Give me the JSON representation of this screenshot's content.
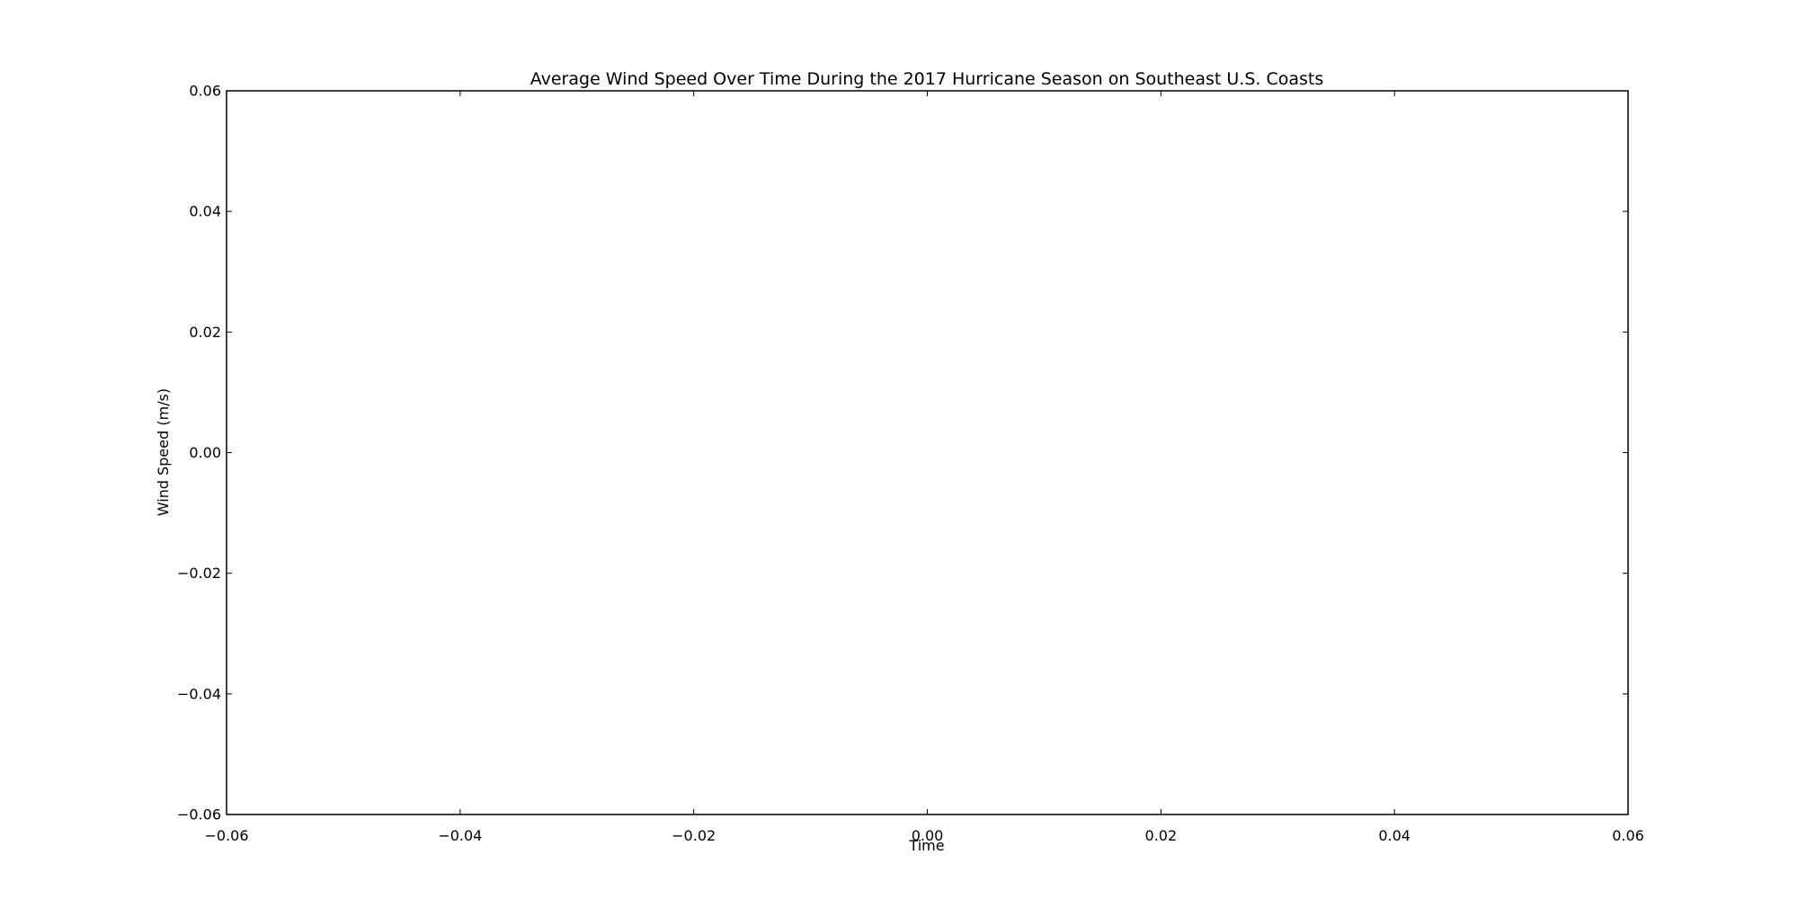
{
  "chart_data": {
    "type": "line",
    "title": "Average Wind Speed Over Time During the 2017 Hurricane Season on Southeast U.S. Coasts",
    "xlabel": "Time",
    "ylabel": "Wind Speed (m/s)",
    "xlim": [
      -0.06,
      0.06
    ],
    "ylim": [
      -0.06,
      0.06
    ],
    "x_ticks": [
      -0.06,
      -0.04,
      -0.02,
      0.0,
      0.02,
      0.04,
      0.06
    ],
    "y_ticks": [
      -0.06,
      -0.04,
      -0.02,
      0.0,
      0.02,
      0.04,
      0.06
    ],
    "x_tick_labels": [
      "−0.06",
      "−0.04",
      "−0.02",
      "0.00",
      "0.02",
      "0.04",
      "0.06"
    ],
    "y_tick_labels": [
      "−0.06",
      "−0.04",
      "−0.02",
      "0.00",
      "0.02",
      "0.04",
      "0.06"
    ],
    "series": [],
    "grid": false,
    "legend": "none"
  }
}
